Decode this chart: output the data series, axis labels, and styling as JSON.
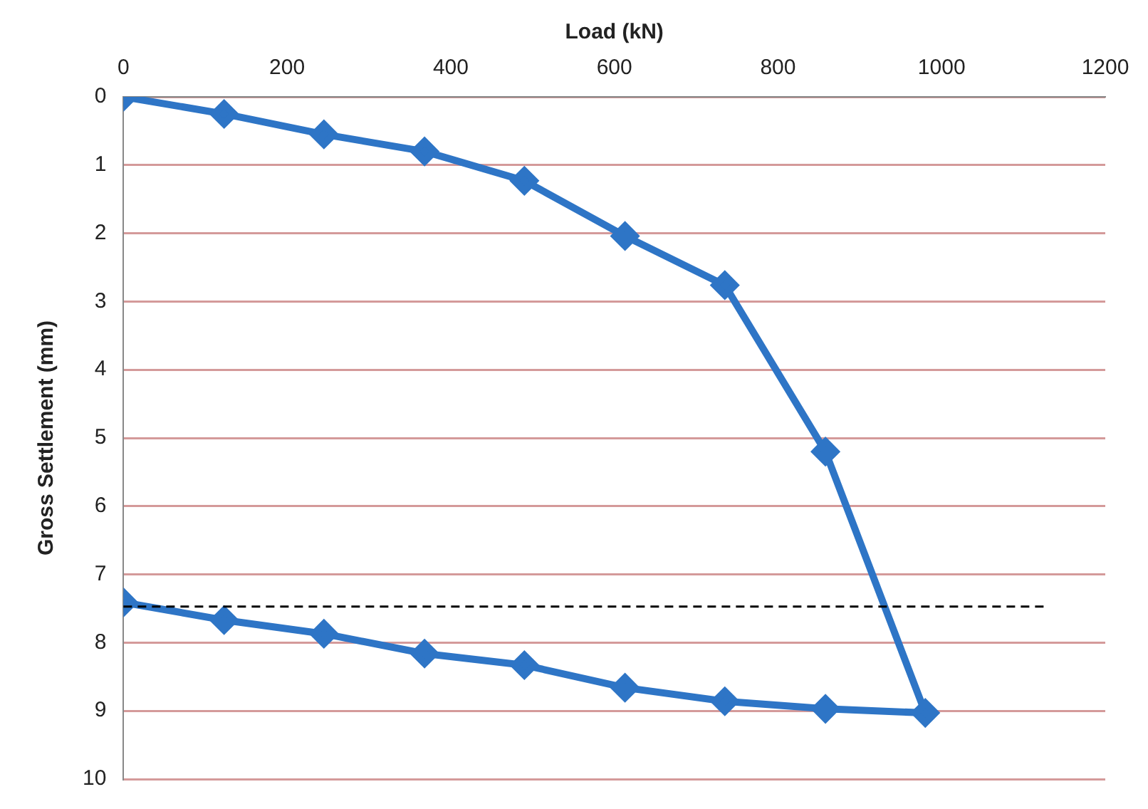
{
  "chart_data": {
    "type": "line",
    "xlabel": "Load (kN)",
    "ylabel": "Gross Settlement (mm)",
    "xlim": [
      0,
      1200
    ],
    "xticks": [
      0,
      200,
      400,
      600,
      800,
      1000,
      1200
    ],
    "ylim": [
      10,
      0
    ],
    "yticks": [
      0,
      1,
      2,
      3,
      4,
      5,
      6,
      7,
      8,
      9,
      10
    ],
    "series": [
      {
        "color": "#2e75c6",
        "x": [
          0,
          123,
          245,
          368,
          490,
          613,
          735,
          858,
          980,
          858,
          735,
          613,
          490,
          368,
          245,
          123,
          0
        ],
        "values": [
          0,
          0.25,
          0.55,
          0.8,
          1.23,
          2.04,
          2.76,
          5.2,
          9.03,
          8.97,
          8.86,
          8.66,
          8.33,
          8.16,
          7.87,
          7.67,
          7.41
        ]
      }
    ],
    "ref_lines": [
      {
        "axis": "y",
        "value": 7.47,
        "color": "#000000",
        "line_style": "dashed"
      }
    ],
    "grid": "y",
    "marker": "diamond",
    "line_style": "solid",
    "legend": false
  }
}
